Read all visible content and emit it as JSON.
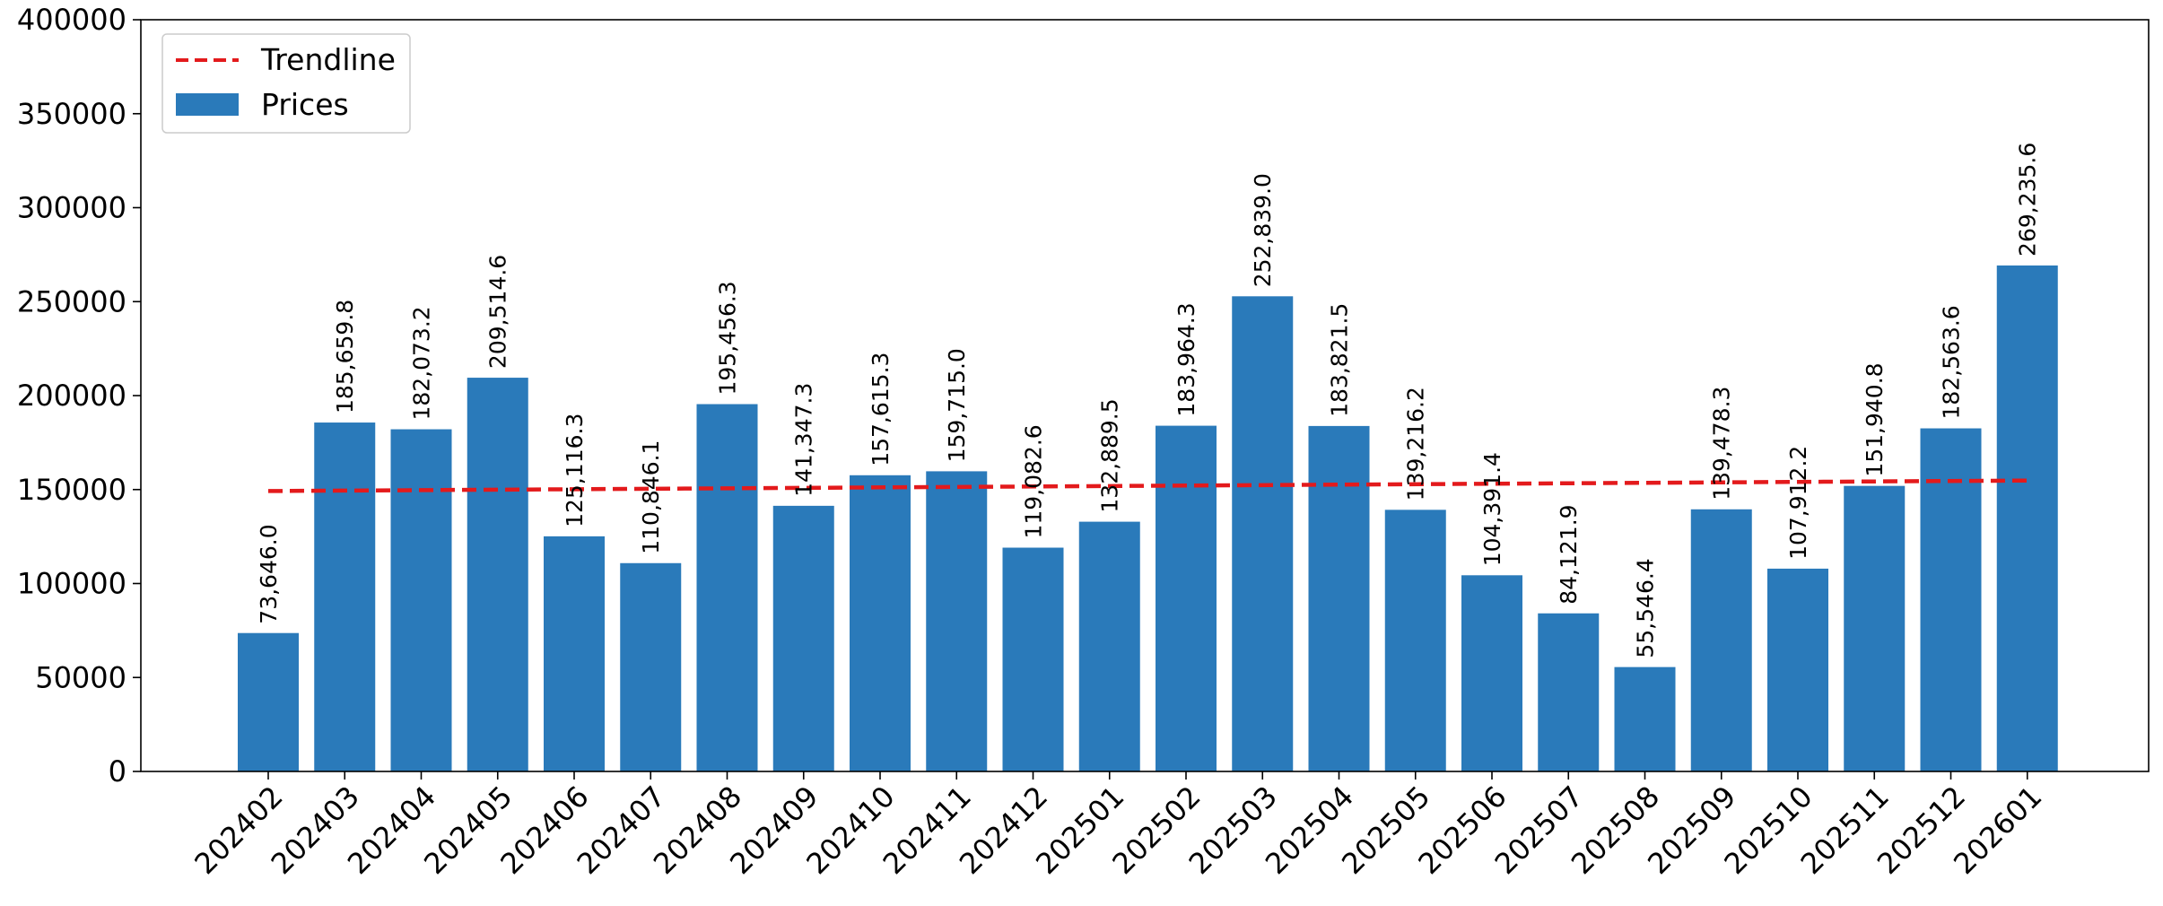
{
  "chart_data": {
    "type": "bar",
    "title": "",
    "xlabel": "",
    "ylabel": "",
    "ylim": [
      0,
      400000
    ],
    "yticks": [
      "0",
      "50000",
      "100000",
      "150000",
      "200000",
      "250000",
      "300000",
      "350000",
      "400000"
    ],
    "ytick_values": [
      0,
      50000,
      100000,
      150000,
      200000,
      250000,
      300000,
      350000,
      400000
    ],
    "categories": [
      "202402",
      "202403",
      "202404",
      "202405",
      "202406",
      "202407",
      "202408",
      "202409",
      "202410",
      "202411",
      "202412",
      "202501",
      "202502",
      "202503",
      "202504",
      "202505",
      "202506",
      "202507",
      "202508",
      "202509",
      "202510",
      "202511",
      "202512",
      "202601"
    ],
    "series": [
      {
        "name": "Prices",
        "type": "bar",
        "color": "#2a7aba",
        "values": [
          73646.0,
          185659.8,
          182073.2,
          209514.6,
          125116.3,
          110846.1,
          195456.3,
          141347.3,
          157615.3,
          159715.0,
          119082.6,
          132889.5,
          183964.3,
          252839.0,
          183821.5,
          139216.2,
          104391.4,
          84121.9,
          55546.4,
          139478.3,
          107912.2,
          151940.8,
          182563.6,
          269235.6
        ],
        "labels": [
          "73,646.0",
          "185,659.8",
          "182,073.2",
          "209,514.6",
          "125,116.3",
          "110,846.1",
          "195,456.3",
          "141,347.3",
          "157,615.3",
          "159,715.0",
          "119,082.6",
          "132,889.5",
          "183,964.3",
          "252,839.0",
          "183,821.5",
          "139,216.2",
          "104,391.4",
          "84,121.9",
          "55,546.4",
          "139,478.3",
          "107,912.2",
          "151,940.8",
          "182,563.6",
          "269,235.6"
        ]
      },
      {
        "name": "Trendline",
        "type": "line",
        "style": "dashed",
        "color": "#e31a1c",
        "start": 149200,
        "end": 154800
      }
    ],
    "legend": {
      "position": "top-left",
      "entries": [
        {
          "label": "Trendline",
          "kind": "line",
          "color": "#e31a1c"
        },
        {
          "label": "Prices",
          "kind": "bar",
          "color": "#2a7aba"
        }
      ]
    },
    "grid": false
  }
}
